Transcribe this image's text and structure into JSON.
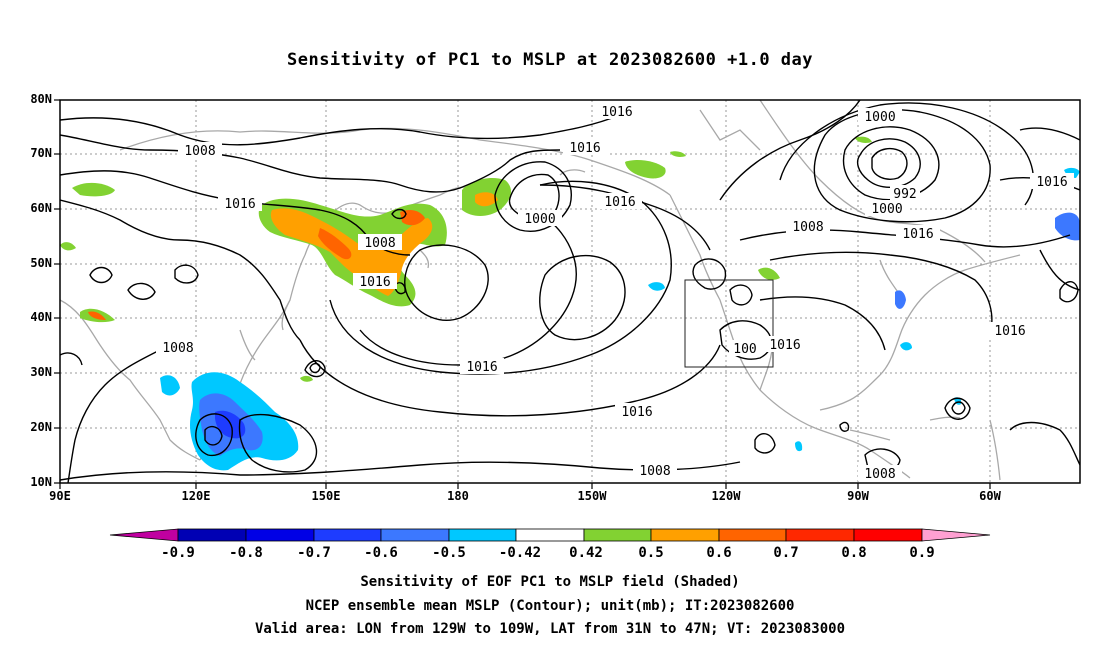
{
  "title": "Sensitivity of PC1 to MSLP at 2023082600 +1.0 day",
  "map": {
    "lat_ticks": [
      "80N",
      "70N",
      "60N",
      "50N",
      "40N",
      "30N",
      "20N",
      "10N"
    ],
    "lon_ticks": [
      "90E",
      "120E",
      "150E",
      "180",
      "150W",
      "120W",
      "90W",
      "60W"
    ],
    "contour_labels": [
      "1016",
      "1008",
      "1000",
      "1016",
      "1016",
      "1008",
      "1000",
      "992",
      "1000",
      "1008",
      "1016",
      "1016",
      "1016",
      "1008",
      "1016",
      "1016",
      "1016",
      "1016",
      "1008",
      "1008",
      "1016",
      "1008",
      "100",
      "1016"
    ],
    "valid_box": {
      "lon_min": -129,
      "lon_max": -109,
      "lat_min": 31,
      "lat_max": 47
    }
  },
  "colorbar": {
    "labels": [
      "-0.9",
      "-0.8",
      "-0.7",
      "-0.6",
      "-0.5",
      "-0.42",
      "0.42",
      "0.5",
      "0.6",
      "0.7",
      "0.8",
      "0.9"
    ],
    "colors": [
      "#c000a0",
      "#0000b4",
      "#0000e6",
      "#1e3cff",
      "#3c78ff",
      "#00c8ff",
      "#ffffff",
      "#82d232",
      "#ffa000",
      "#ff6400",
      "#ff2800",
      "#ff0000",
      "#ffa0d2"
    ]
  },
  "captions": {
    "line1": "Sensitivity of EOF PC1 to MSLP field (Shaded)",
    "line2": "NCEP ensemble mean MSLP (Contour); unit(mb); IT:2023082600",
    "line3": "Valid area: LON from 129W to 109W, LAT from 31N to 47N; VT: 2023083000"
  }
}
